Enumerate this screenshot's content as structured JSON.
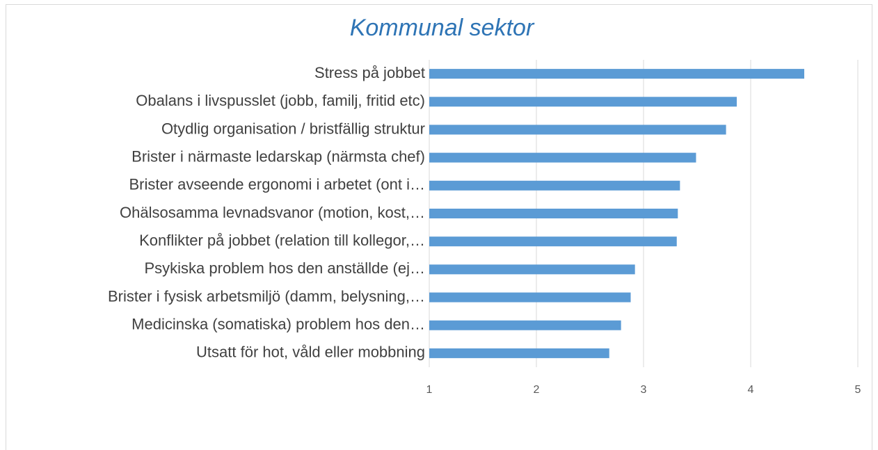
{
  "chart_data": {
    "type": "bar",
    "orientation": "horizontal",
    "title": "Kommunal sektor",
    "categories": [
      "Stress på jobbet",
      "Obalans i livspusslet (jobb, familj, fritid etc)",
      "Otydlig organisation / bristfällig struktur",
      "Brister i närmaste ledarskap (närmsta chef)",
      "Brister avseende ergonomi i arbetet (ont i…",
      "Ohälsosamma levnadsvanor (motion, kost,…",
      "Konflikter på jobbet (relation till kollegor,…",
      "Psykiska problem hos den anställde (ej…",
      "Brister i fysisk arbetsmiljö (damm, belysning,…",
      "Medicinska (somatiska) problem hos den…",
      "Utsatt för hot, våld eller mobbning"
    ],
    "values": [
      4.5,
      3.87,
      3.77,
      3.49,
      3.34,
      3.32,
      3.31,
      2.92,
      2.88,
      2.79,
      2.68
    ],
    "color": "#5b9bd5",
    "xlim": [
      1,
      5
    ],
    "xticks": [
      1,
      2,
      3,
      4,
      5
    ],
    "grid": true
  }
}
